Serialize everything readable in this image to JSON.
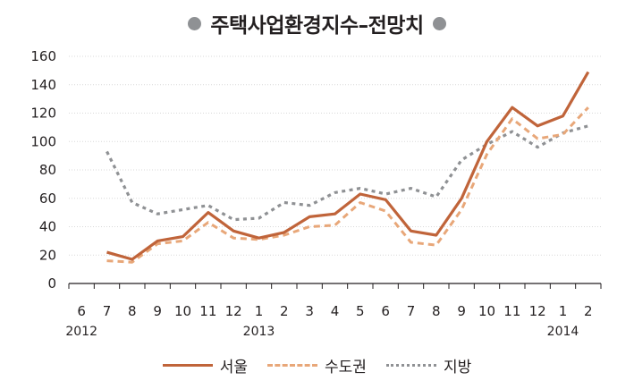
{
  "chart_data": {
    "type": "line",
    "title": "주택사업환경지수–전망치",
    "months": [
      "6",
      "7",
      "8",
      "9",
      "10",
      "11",
      "12",
      "1",
      "2",
      "3",
      "4",
      "5",
      "6",
      "7",
      "8",
      "9",
      "10",
      "11",
      "12",
      "1",
      "2"
    ],
    "years": [
      {
        "label": "2012",
        "index": 0
      },
      {
        "label": "2013",
        "index": 7
      },
      {
        "label": "2014",
        "index": 19
      }
    ],
    "ylim": [
      0,
      160
    ],
    "yticks": [
      0,
      20,
      40,
      60,
      80,
      100,
      120,
      140,
      160
    ],
    "grid": true,
    "legend_position": "bottom",
    "series": [
      {
        "name": "서울",
        "color": "#c0643a",
        "style": "solid",
        "values": [
          null,
          22,
          17,
          30,
          33,
          50,
          37,
          32,
          36,
          47,
          49,
          63,
          59,
          37,
          34,
          60,
          100,
          124,
          111,
          118,
          149
        ]
      },
      {
        "name": "수도권",
        "color": "#e8a779",
        "style": "dashed",
        "values": [
          null,
          16,
          15,
          28,
          30,
          43,
          32,
          31,
          34,
          40,
          41,
          57,
          51,
          29,
          27,
          52,
          91,
          116,
          102,
          105,
          124
        ]
      },
      {
        "name": "지방",
        "color": "#8f9194",
        "style": "dotted",
        "values": [
          null,
          93,
          57,
          49,
          52,
          55,
          45,
          46,
          57,
          55,
          64,
          67,
          63,
          67,
          61,
          87,
          98,
          107,
          96,
          106,
          111
        ]
      }
    ]
  }
}
